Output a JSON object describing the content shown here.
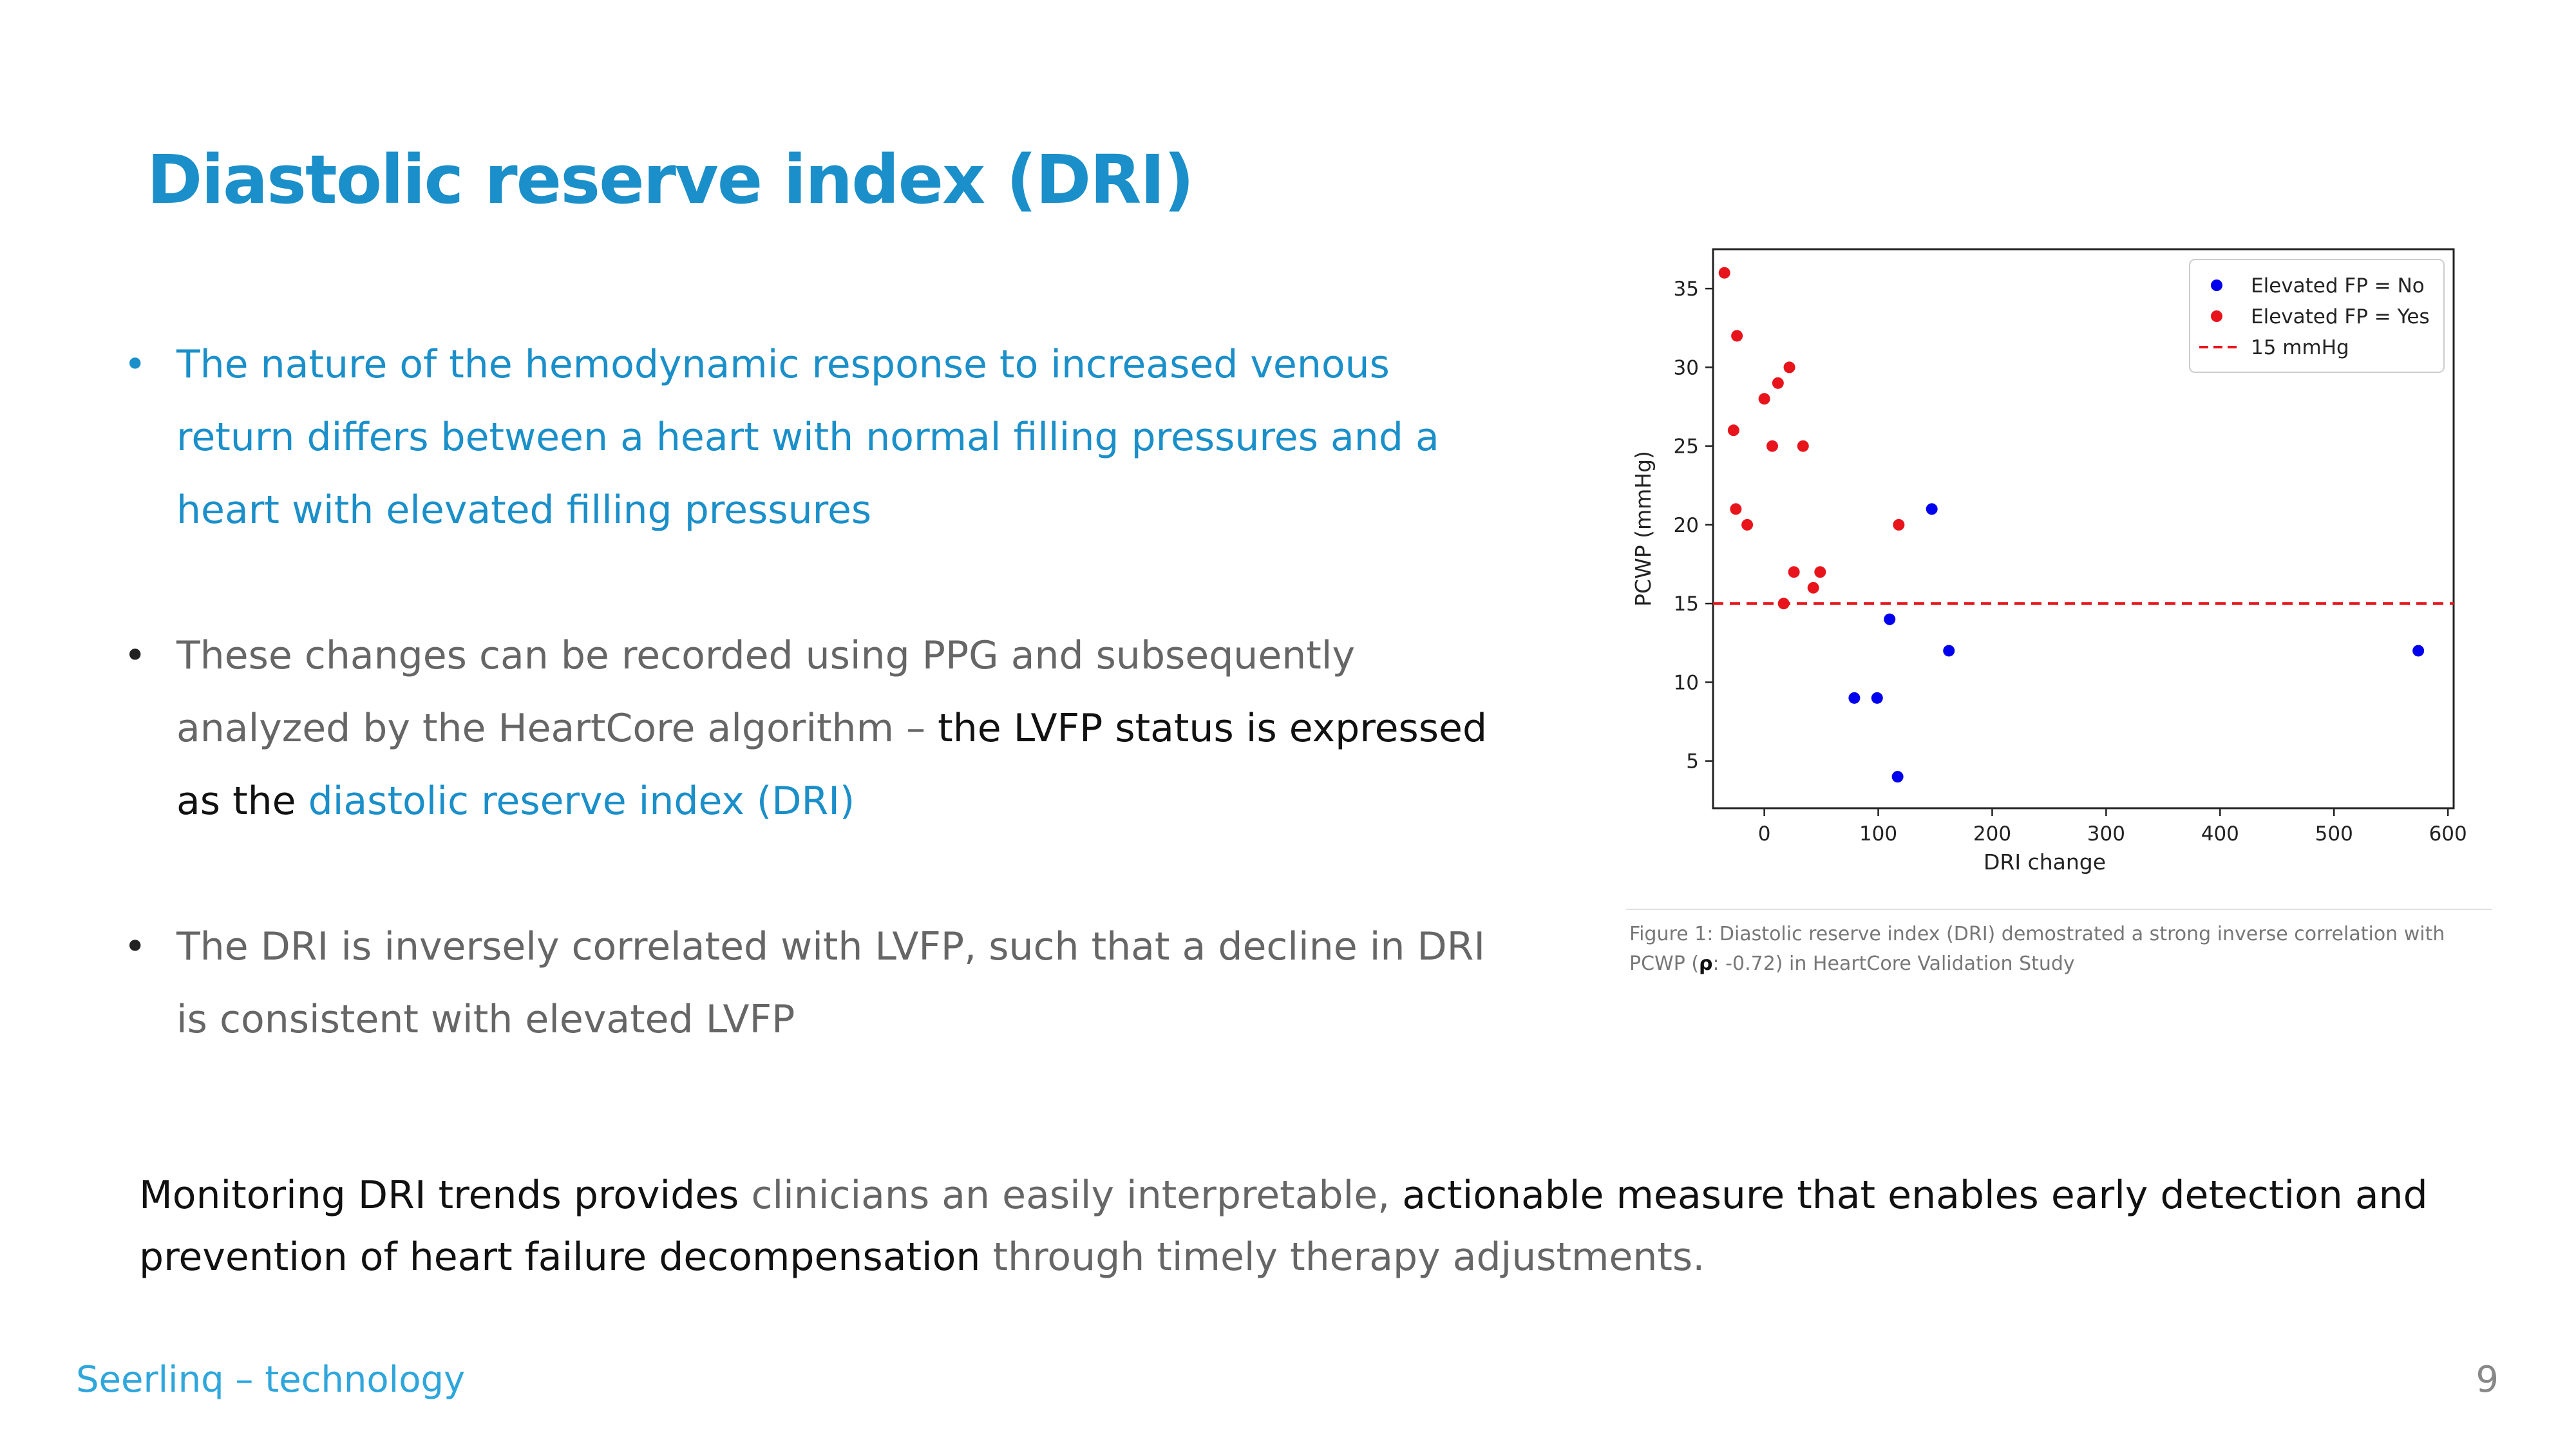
{
  "title": "Diastolic reserve index (DRI)",
  "bullets": {
    "b1": "The nature of the hemodynamic response to increased venous return differs between a heart with normal filling pressures and a heart with elevated filling pressures",
    "b2_part1": "These changes can be recorded using PPG and subsequently analyzed by the HeartCore algorithm – ",
    "b2_part2": "the LVFP status is expressed as the",
    "b2_part3": "diastolic reserve index (DRI)",
    "b3": "The DRI is inversely correlated with LVFP, such that a decline in DRI is consistent with elevated LVFP"
  },
  "caption": {
    "part1": "Figure 1: Diastolic reserve index (DRI) demostrated a strong inverse correlation with PCWP (",
    "rho": "ρ",
    "part2": ": -0.72) in HeartCore Validation Study"
  },
  "summary": {
    "part1": "Monitoring DRI trends provides",
    "part2": " clinicians an easily interpretable, ",
    "part3": "actionable measure that enables early detection and prevention of heart failure decompensation",
    "part4": " through timely therapy adjustments."
  },
  "footer": {
    "left": "Seerlinq – technology",
    "page": "9"
  },
  "colors": {
    "accent": "#1a8fc9",
    "no": "#0000ee",
    "yes": "#e8141c",
    "threshold": "#e8141c"
  },
  "chart_data": {
    "type": "scatter",
    "xlabel": "DRI change",
    "ylabel": "PCWP (mmHg)",
    "xlim": [
      -45,
      605
    ],
    "ylim": [
      2,
      37.5
    ],
    "xticks": [
      "0",
      "100",
      "200",
      "300",
      "400",
      "500",
      "600"
    ],
    "yticks": [
      "5",
      "10",
      "15",
      "20",
      "25",
      "30",
      "35"
    ],
    "grid": false,
    "legend_position": "top-right",
    "threshold": {
      "name": "15 mmHg",
      "y": 15
    },
    "series": [
      {
        "name": "Elevated FP = No",
        "points": [
          [
            147,
            21
          ],
          [
            110,
            14
          ],
          [
            162,
            12
          ],
          [
            79,
            9
          ],
          [
            99,
            9
          ],
          [
            117,
            4
          ],
          [
            574,
            12
          ]
        ]
      },
      {
        "name": "Elevated FP = Yes",
        "points": [
          [
            -35,
            36
          ],
          [
            -24,
            32
          ],
          [
            -27,
            26
          ],
          [
            -25,
            21
          ],
          [
            -15,
            20
          ],
          [
            0,
            28
          ],
          [
            12,
            29
          ],
          [
            22,
            30
          ],
          [
            7,
            25
          ],
          [
            34,
            25
          ],
          [
            118,
            20
          ],
          [
            26,
            17
          ],
          [
            49,
            17
          ],
          [
            43,
            16
          ],
          [
            17,
            15
          ]
        ]
      }
    ]
  }
}
